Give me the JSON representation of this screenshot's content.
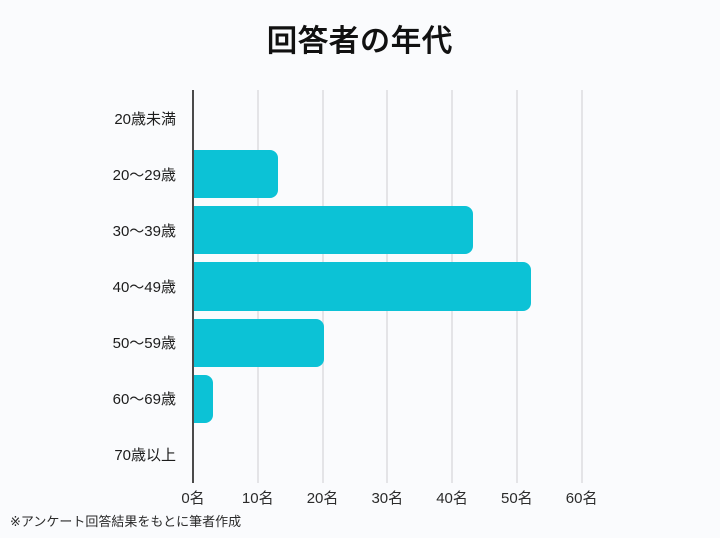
{
  "page": {
    "background_color": "#fafbfd"
  },
  "title": "回答者の年代",
  "footer_note": "※アンケート回答結果をもとに筆者作成",
  "chart_data": {
    "type": "bar",
    "orientation": "horizontal",
    "title": "回答者の年代",
    "categories": [
      "20歳未満",
      "20～29歳",
      "30～39歳",
      "40～49歳",
      "50～59歳",
      "60～69歳",
      "70歳以上"
    ],
    "values": [
      0,
      13,
      43,
      52,
      20,
      3,
      0
    ],
    "unit": "名",
    "x_ticks": [
      {
        "value": 0,
        "label": "0名"
      },
      {
        "value": 10,
        "label": "10名"
      },
      {
        "value": 20,
        "label": "20名"
      },
      {
        "value": 30,
        "label": "30名"
      },
      {
        "value": 40,
        "label": "40名"
      },
      {
        "value": 50,
        "label": "50名"
      },
      {
        "value": 60,
        "label": "60名"
      }
    ],
    "xlim": [
      0,
      65
    ],
    "grid": true,
    "legend": false,
    "bar_color": "#0cc2d6",
    "grid_color": "#e4e4e7",
    "axis_color": "#4a4a4a"
  }
}
